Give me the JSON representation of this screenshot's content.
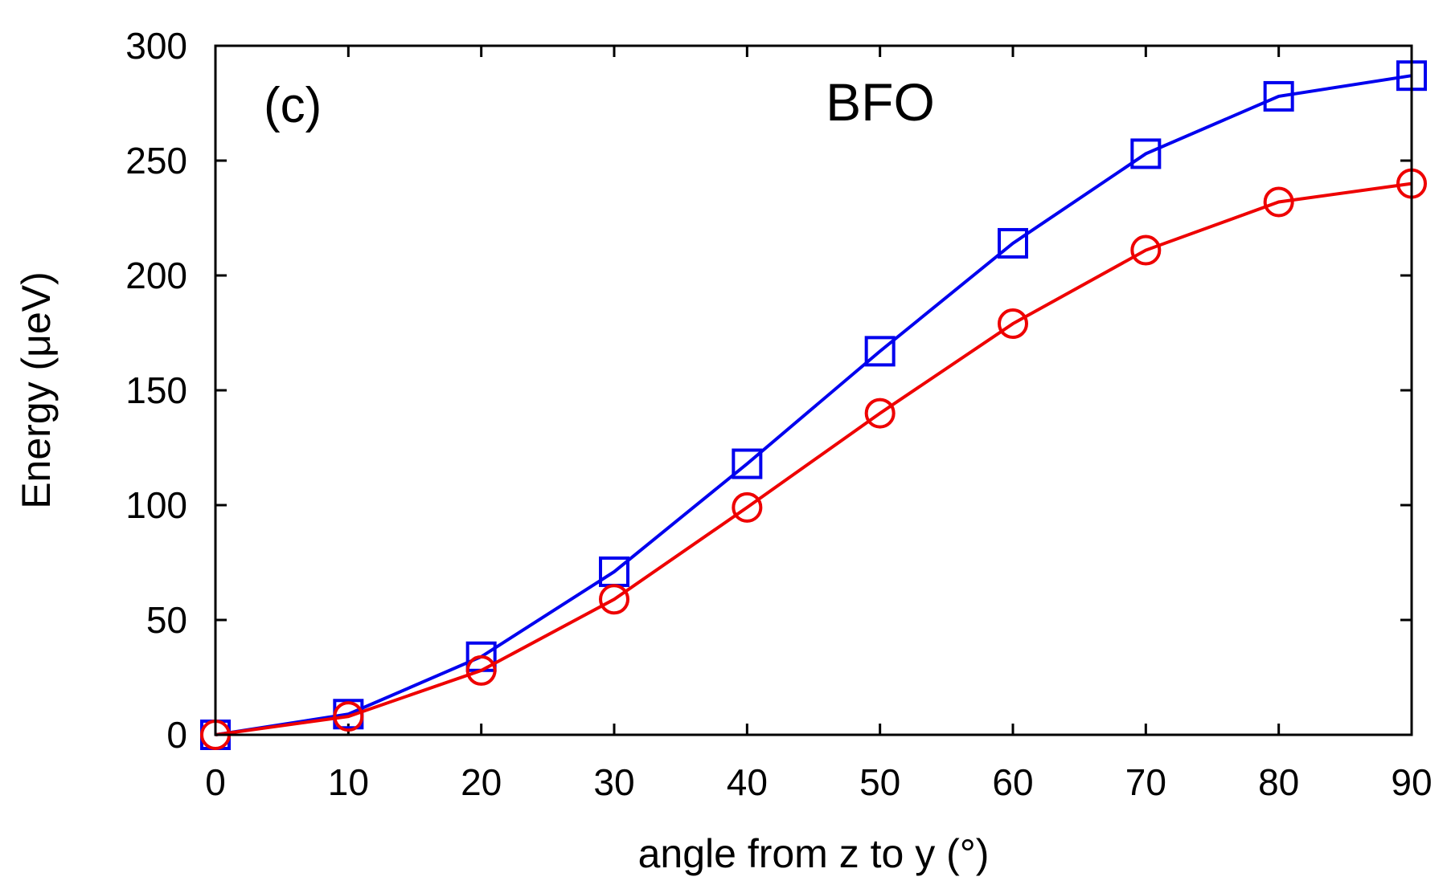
{
  "chart_data": {
    "type": "line",
    "panel_label": "(c)",
    "title": "BFO",
    "xlabel": "angle from z to y (°)",
    "ylabel": "Energy (μeV)",
    "xlim": [
      0,
      90
    ],
    "ylim": [
      0,
      300
    ],
    "xticks": [
      0,
      10,
      20,
      30,
      40,
      50,
      60,
      70,
      80,
      90
    ],
    "yticks": [
      0,
      50,
      100,
      150,
      200,
      250,
      300
    ],
    "grid": false,
    "legend": "none",
    "x": [
      0,
      10,
      20,
      30,
      40,
      50,
      60,
      70,
      80,
      90
    ],
    "series": [
      {
        "marker": "square",
        "color": "#0000ee",
        "values": [
          0,
          9,
          34,
          71,
          118,
          167,
          214,
          253,
          278,
          287
        ]
      },
      {
        "marker": "circle",
        "color": "#ee0000",
        "values": [
          0,
          8,
          28,
          59,
          99,
          140,
          179,
          211,
          232,
          240
        ]
      }
    ]
  }
}
